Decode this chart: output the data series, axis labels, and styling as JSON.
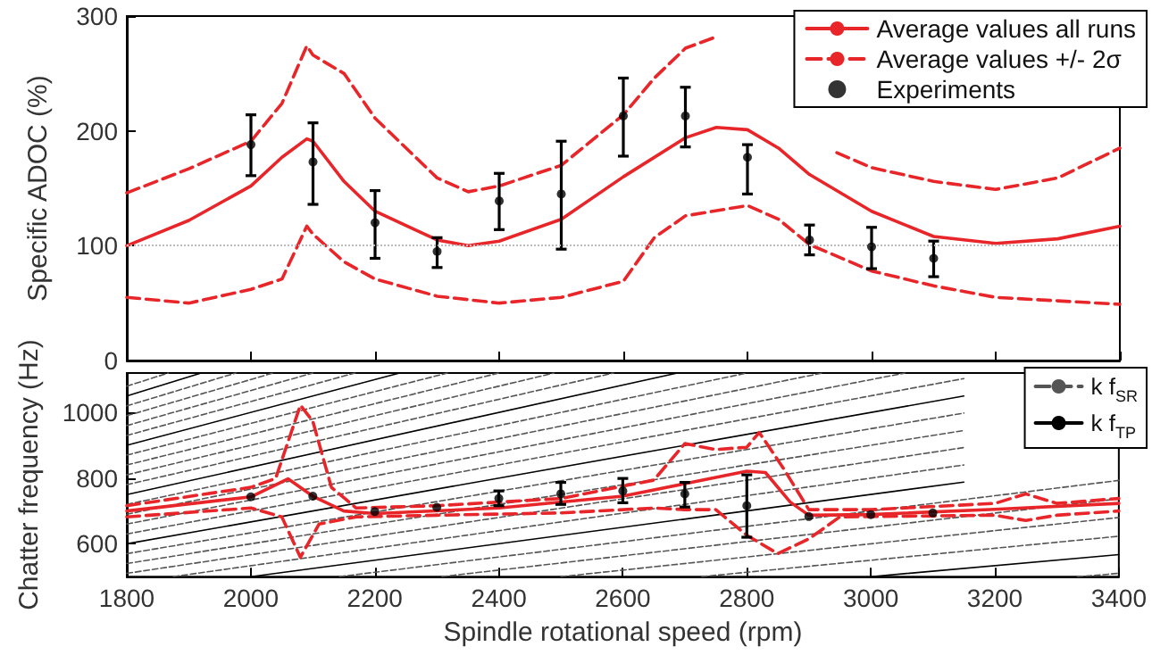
{
  "chart_data": [
    {
      "type": "line",
      "ylabel": "Specific ADOC (%)",
      "xlim": [
        1800,
        3400
      ],
      "xticks": [
        1800,
        2000,
        2200,
        2400,
        2600,
        2800,
        3000,
        3200,
        3400
      ],
      "ylim": [
        0,
        300
      ],
      "yticks": [
        0,
        100,
        200,
        300
      ],
      "tick_labels": "y",
      "grid": false,
      "legend": "top right",
      "ref_lines": [
        {
          "axis": "y",
          "value": 100,
          "color": "#bbbbbb",
          "line_style": "dotted"
        }
      ],
      "series": [
        {
          "name": "Average values all runs",
          "color": "#e8262a",
          "line_style": "solid",
          "marker": "none",
          "x": [
            1800,
            1900,
            2000,
            2050,
            2090,
            2100,
            2150,
            2200,
            2300,
            2350,
            2400,
            2500,
            2600,
            2700,
            2750,
            2800,
            2850,
            2900,
            3000,
            3100,
            3200,
            3300,
            3400
          ],
          "values": [
            100,
            122,
            152,
            177,
            193,
            191,
            156,
            130,
            105,
            100,
            104,
            123,
            160,
            194,
            203,
            201,
            185,
            162,
            130,
            108,
            102,
            106,
            117
          ]
        },
        {
          "name": "Average values +/- 2σ",
          "color": "#e8262a",
          "line_style": "dashed",
          "marker": "none",
          "x": [
            1800,
            1900,
            2000,
            2050,
            2090,
            2100,
            2150,
            2200,
            2300,
            2350,
            2400,
            2500,
            2600,
            2650,
            2700,
            2750,
            2850,
            2944,
            3000,
            3100,
            3200,
            3300,
            3400
          ],
          "values": [
            146,
            167,
            191,
            224,
            274,
            266,
            250,
            211,
            159,
            147,
            152,
            170,
            214,
            246,
            272,
            282,
            null,
            181,
            168,
            156,
            149,
            159,
            185
          ]
        },
        {
          "color": "#e8262a",
          "line_style": "dashed",
          "marker": "none",
          "x": [
            1800,
            1900,
            2000,
            2050,
            2090,
            2100,
            2150,
            2200,
            2300,
            2400,
            2500,
            2600,
            2650,
            2700,
            2800,
            2850,
            2900,
            3000,
            3100,
            3200,
            3300,
            3400
          ],
          "values": [
            55,
            50,
            62,
            71,
            117,
            110,
            86,
            71,
            56,
            50,
            55,
            69,
            107,
            126,
            135,
            123,
            101,
            78,
            65,
            55,
            52,
            49
          ]
        },
        {
          "name": "Experiments",
          "type": "scatter",
          "color": "#000000",
          "marker": "circle",
          "x": [
            2000,
            2100,
            2200,
            2300,
            2400,
            2500,
            2600,
            2700,
            2800,
            2900,
            3000,
            3100
          ],
          "values": [
            188,
            173,
            120,
            95,
            139,
            145,
            213,
            213,
            177,
            105,
            99,
            89
          ],
          "errors": [
            [
              161,
              214
            ],
            [
              136,
              207
            ],
            [
              89,
              148
            ],
            [
              81,
              107
            ],
            [
              114,
              163
            ],
            [
              97,
              191
            ],
            [
              178,
              246
            ],
            [
              186,
              238
            ],
            [
              145,
              188
            ],
            [
              92,
              118
            ],
            [
              80,
              116
            ],
            [
              73,
              104
            ]
          ]
        }
      ]
    },
    {
      "type": "line",
      "xlabel": "Spindle rotational speed (rpm)",
      "ylabel": "Chatter frequency (Hz)",
      "xlim": [
        1800,
        3400
      ],
      "xticks": [
        1800,
        2000,
        2200,
        2400,
        2600,
        2800,
        3000,
        3200,
        3400
      ],
      "ylim": [
        500,
        1120
      ],
      "yticks": [
        600,
        800,
        1000
      ],
      "grid": false,
      "legend": "top right",
      "series": [
        {
          "name": "k f$_{SR}$",
          "color": "#555555",
          "line_style": "dashed",
          "marker": "none",
          "x": [
            3333,
            3400
          ],
          "values": [
            500,
            510
          ]
        },
        {
          "color": "#555555",
          "line_style": "dashed",
          "marker": "none",
          "x": [
            2727,
            3400
          ],
          "values": [
            500,
            623
          ]
        },
        {
          "color": "#555555",
          "line_style": "dashed",
          "marker": "none",
          "x": [
            2500,
            3400
          ],
          "values": [
            500,
            680
          ]
        },
        {
          "color": "#555555",
          "line_style": "dashed",
          "marker": "none",
          "x": [
            2308,
            3400
          ],
          "values": [
            500,
            737
          ]
        },
        {
          "color": "#555555",
          "line_style": "dashed",
          "marker": "none",
          "x": [
            2143,
            3400
          ],
          "values": [
            500,
            793
          ]
        },
        {
          "color": "#555555",
          "line_style": "dashed",
          "marker": "none",
          "x": [
            1875,
            3150
          ],
          "values": [
            500,
            840
          ]
        },
        {
          "color": "#555555",
          "line_style": "dashed",
          "marker": "none",
          "x": [
            1800,
            3150
          ],
          "values": [
            510,
            893
          ]
        },
        {
          "color": "#555555",
          "line_style": "dashed",
          "marker": "none",
          "x": [
            1800,
            3150
          ],
          "values": [
            540,
            945
          ]
        },
        {
          "color": "#555555",
          "line_style": "dashed",
          "marker": "none",
          "x": [
            1800,
            3150
          ],
          "values": [
            570,
            998
          ]
        },
        {
          "color": "#555555",
          "line_style": "dashed",
          "marker": "none",
          "x": [
            1800,
            3150
          ],
          "values": [
            630,
            1103
          ]
        },
        {
          "color": "#555555",
          "line_style": "dashed",
          "marker": "none",
          "x": [
            1800,
            3055
          ],
          "values": [
            660,
            1120
          ]
        },
        {
          "color": "#555555",
          "line_style": "dashed",
          "marker": "none",
          "x": [
            1800,
            2922
          ],
          "values": [
            690,
            1120
          ]
        },
        {
          "color": "#555555",
          "line_style": "dashed",
          "marker": "none",
          "x": [
            1800,
            2800
          ],
          "values": [
            720,
            1120
          ]
        },
        {
          "color": "#555555",
          "line_style": "dashed",
          "marker": "none",
          "x": [
            1800,
            2585
          ],
          "values": [
            780,
            1120
          ]
        },
        {
          "color": "#555555",
          "line_style": "dashed",
          "marker": "none",
          "x": [
            1800,
            2489
          ],
          "values": [
            810,
            1120
          ]
        },
        {
          "color": "#555555",
          "line_style": "dashed",
          "marker": "none",
          "x": [
            1800,
            2400
          ],
          "values": [
            840,
            1120
          ]
        },
        {
          "color": "#555555",
          "line_style": "dashed",
          "marker": "none",
          "x": [
            1800,
            2317
          ],
          "values": [
            870,
            1120
          ]
        },
        {
          "color": "#555555",
          "line_style": "dashed",
          "marker": "none",
          "x": [
            1800,
            2168
          ],
          "values": [
            930,
            1120
          ]
        },
        {
          "color": "#555555",
          "line_style": "dashed",
          "marker": "none",
          "x": [
            1800,
            2100
          ],
          "values": [
            960,
            1120
          ]
        },
        {
          "color": "#555555",
          "line_style": "dashed",
          "marker": "none",
          "x": [
            1800,
            2036
          ],
          "values": [
            990,
            1120
          ]
        },
        {
          "color": "#555555",
          "line_style": "dashed",
          "marker": "none",
          "x": [
            1800,
            1976
          ],
          "values": [
            1020,
            1120
          ]
        },
        {
          "color": "#555555",
          "line_style": "dashed",
          "marker": "none",
          "x": [
            1800,
            1867
          ],
          "values": [
            1080,
            1120
          ]
        },
        {
          "name": "k f$_{TP}$",
          "color": "#000000",
          "line_style": "solid",
          "marker": "none",
          "x": [
            3000,
            3400
          ],
          "values": [
            500,
            567
          ]
        },
        {
          "color": "#000000",
          "line_style": "solid",
          "marker": "none",
          "x": [
            2000,
            3150
          ],
          "values": [
            500,
            788
          ]
        },
        {
          "color": "#000000",
          "line_style": "solid",
          "marker": "none",
          "x": [
            1800,
            3150
          ],
          "values": [
            600,
            1050
          ]
        },
        {
          "color": "#000000",
          "line_style": "solid",
          "marker": "none",
          "x": [
            1800,
            2688
          ],
          "values": [
            750,
            1120
          ]
        },
        {
          "color": "#000000",
          "line_style": "solid",
          "marker": "none",
          "x": [
            1800,
            2240
          ],
          "values": [
            900,
            1120
          ]
        },
        {
          "color": "#000000",
          "line_style": "solid",
          "marker": "none",
          "x": [
            1800,
            1920
          ],
          "values": [
            1050,
            1120
          ]
        },
        {
          "color": "#e8262a",
          "line_style": "solid",
          "marker": "none",
          "x": [
            1800,
            2000,
            2060,
            2100,
            2150,
            2200,
            2400,
            2600,
            2700,
            2800,
            2830,
            2870,
            2900,
            3000,
            3200,
            3400
          ],
          "values": [
            700,
            743,
            798,
            745,
            700,
            692,
            709,
            745,
            783,
            821,
            817,
            727,
            687,
            689,
            705,
            723
          ]
        },
        {
          "color": "#e8262a",
          "line_style": "dashed",
          "marker": "none",
          "x": [
            1800,
            2000,
            2040,
            2080,
            2100,
            2130,
            2170,
            2300,
            2500,
            2650,
            2700,
            2750,
            2800,
            2820,
            2860,
            2900,
            3000,
            3200,
            3250,
            3300,
            3400
          ],
          "values": [
            716,
            772,
            799,
            1022,
            973,
            772,
            709,
            716,
            738,
            794,
            905,
            887,
            894,
            939,
            827,
            704,
            704,
            723,
            752,
            723,
            738
          ]
        },
        {
          "color": "#e8262a",
          "line_style": "dashed",
          "marker": "none",
          "x": [
            1800,
            2000,
            2050,
            2080,
            2110,
            2170,
            2300,
            2500,
            2650,
            2700,
            2750,
            2800,
            2850,
            2900,
            2950,
            3200,
            3250,
            3300,
            3400
          ],
          "values": [
            682,
            709,
            682,
            559,
            660,
            682,
            687,
            694,
            709,
            704,
            704,
            626,
            570,
            615,
            682,
            687,
            671,
            687,
            700
          ]
        },
        {
          "type": "scatter",
          "color": "#000000",
          "marker": "circle",
          "x": [
            2000,
            2100,
            2200,
            2300,
            2400,
            2500,
            2600,
            2700,
            2800,
            2900,
            3000,
            3100
          ],
          "values": [
            743,
            745,
            698,
            711,
            738,
            752,
            761,
            752,
            716,
            683,
            689,
            694
          ],
          "errors": [
            null,
            null,
            null,
            null,
            [
              716,
              761
            ],
            [
              720,
              787
            ],
            [
              725,
              799
            ],
            [
              712,
              787
            ],
            [
              620,
              810
            ],
            null,
            null,
            null
          ]
        }
      ]
    }
  ]
}
